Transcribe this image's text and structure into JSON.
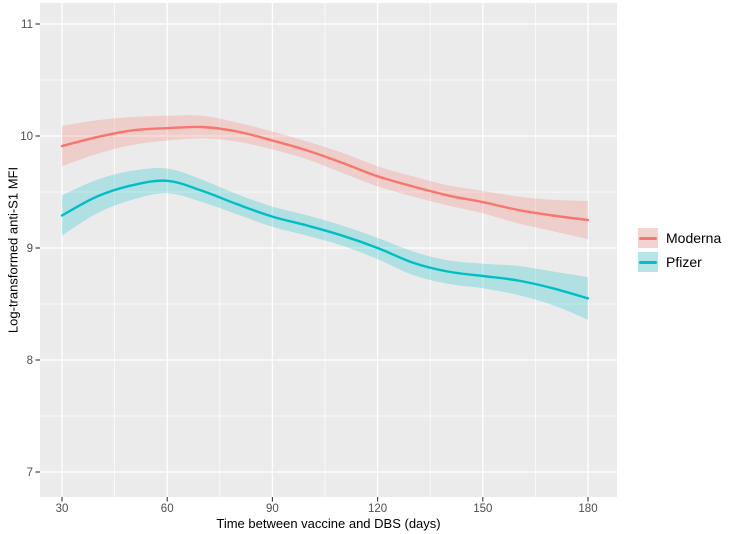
{
  "colors": {
    "panel_bg": "#EBEBEB",
    "grid": "#FFFFFF",
    "tick_mark": "#333333",
    "tick_label": "#4D4D4D",
    "axis_title": "#000000",
    "moderna": "#F8766D",
    "pfizer": "#00BFC4",
    "moderna_band": "rgba(248,118,109,0.25)",
    "pfizer_band": "rgba(0,191,196,0.25)"
  },
  "legend": {
    "items": [
      {
        "label": "Moderna"
      },
      {
        "label": "Pfizer"
      }
    ]
  },
  "chart_data": {
    "type": "line",
    "title": "",
    "xlabel": "Time between vaccine and DBS (days)",
    "ylabel": "Log-transformed anti-S1 MFI",
    "xlim": [
      24,
      188
    ],
    "ylim": [
      6.8,
      11.2
    ],
    "x_ticks": [
      30,
      60,
      90,
      120,
      150,
      180
    ],
    "y_ticks": [
      7,
      8,
      9,
      10,
      11
    ],
    "x_minor": [
      45,
      75,
      105,
      135,
      165
    ],
    "y_minor": [
      7.5,
      8.5,
      9.5,
      10.5
    ],
    "grid": true,
    "legend_position": "right",
    "x": [
      30,
      40,
      50,
      60,
      70,
      80,
      90,
      100,
      110,
      120,
      130,
      140,
      150,
      160,
      170,
      180
    ],
    "series": [
      {
        "name": "Moderna",
        "color": "#F8766D",
        "band_color": "rgba(248,118,109,0.25)",
        "y": [
          9.91,
          9.99,
          10.05,
          10.07,
          10.08,
          10.04,
          9.96,
          9.87,
          9.76,
          9.64,
          9.55,
          9.47,
          9.41,
          9.34,
          9.29,
          9.25
        ],
        "upper": [
          10.09,
          10.14,
          10.17,
          10.18,
          10.18,
          10.12,
          10.04,
          9.95,
          9.85,
          9.73,
          9.64,
          9.56,
          9.51,
          9.46,
          9.43,
          9.42
        ],
        "lower": [
          9.73,
          9.84,
          9.92,
          9.96,
          9.98,
          9.95,
          9.88,
          9.79,
          9.67,
          9.55,
          9.46,
          9.38,
          9.31,
          9.22,
          9.15,
          9.08
        ]
      },
      {
        "name": "Pfizer",
        "color": "#00BFC4",
        "band_color": "rgba(0,191,196,0.25)",
        "y": [
          9.29,
          9.46,
          9.56,
          9.6,
          9.51,
          9.39,
          9.28,
          9.2,
          9.11,
          9.0,
          8.87,
          8.79,
          8.75,
          8.71,
          8.64,
          8.55
        ],
        "upper": [
          9.47,
          9.61,
          9.69,
          9.71,
          9.61,
          9.48,
          9.37,
          9.29,
          9.2,
          9.09,
          8.97,
          8.89,
          8.86,
          8.84,
          8.79,
          8.74
        ],
        "lower": [
          9.11,
          9.31,
          9.43,
          9.49,
          9.41,
          9.3,
          9.19,
          9.11,
          9.02,
          8.9,
          8.76,
          8.68,
          8.64,
          8.58,
          8.49,
          8.36
        ]
      }
    ]
  }
}
